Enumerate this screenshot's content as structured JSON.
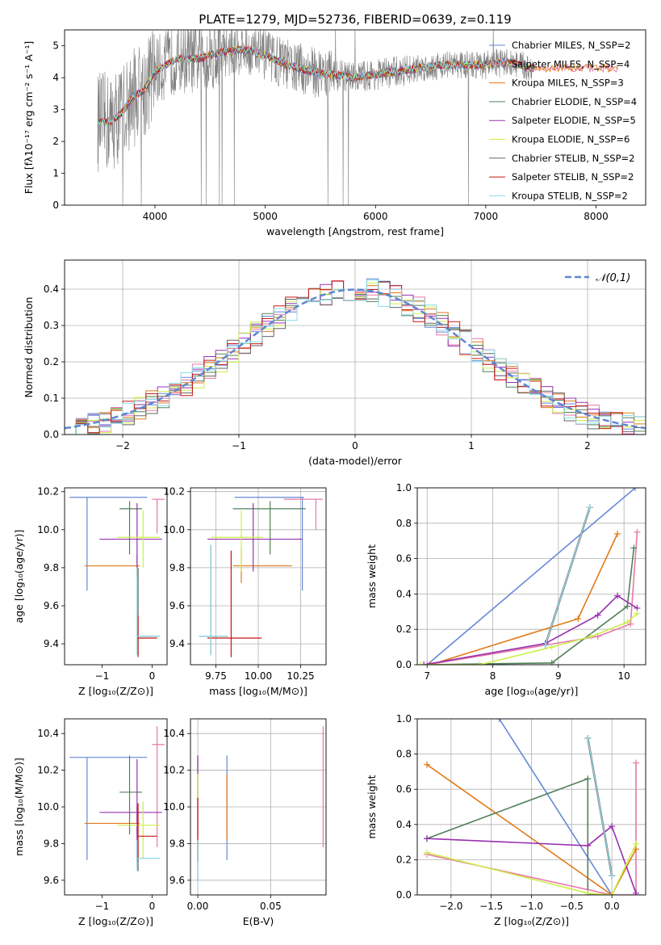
{
  "colors": {
    "Chabrier MILES": "#6688d8",
    "Salpeter MILES": "#e878a8",
    "Kroupa MILES": "#e07a18",
    "Chabrier ELODIE": "#508058",
    "Salpeter ELODIE": "#9830b0",
    "Kroupa ELODIE": "#ccee48",
    "Chabrier STELIB": "#666666",
    "Salpeter STELIB": "#c81818",
    "Kroupa STELIB": "#88dde8",
    "spectrum": "#808080",
    "gauss": "#5f87d0",
    "grid": "#b0b0b0"
  },
  "chart_data": [
    {
      "id": "spectrum",
      "type": "line",
      "title": "PLATE=1279, MJD=52736, FIBERID=0639, z=0.119",
      "xlabel": "wavelength [Angstrom, rest frame]",
      "ylabel": "Flux [fλ10⁻¹⁷ erg cm⁻² s⁻¹ A⁻¹]",
      "xlim": [
        3180,
        8450
      ],
      "ylim": [
        0,
        5.5
      ],
      "xticks": [
        4000,
        5000,
        6000,
        7000,
        8000
      ],
      "yticks": [
        0,
        1,
        2,
        3,
        4,
        5
      ],
      "grid": false,
      "legend": "top-right",
      "legend_entries": [
        "Chabrier MILES, N_SSP=2",
        "Salpeter MILES, N_SSP=4",
        "Kroupa MILES, N_SSP=3",
        "Chabrier ELODIE, N_SSP=4",
        "Salpeter ELODIE, N_SSP=5",
        "Kroupa ELODIE, N_SSP=6",
        "Chabrier STELIB, N_SSP=2",
        "Salpeter STELIB, N_SSP=2",
        "Kroupa STELIB, N_SSP=2"
      ],
      "continuum": [
        [
          3480,
          2.6
        ],
        [
          3600,
          2.6
        ],
        [
          3700,
          2.9
        ],
        [
          3800,
          3.4
        ],
        [
          3900,
          3.6
        ],
        [
          4000,
          4.2
        ],
        [
          4200,
          4.6
        ],
        [
          4400,
          4.6
        ],
        [
          4600,
          4.8
        ],
        [
          4800,
          4.9
        ],
        [
          5000,
          4.7
        ],
        [
          5200,
          4.4
        ],
        [
          5400,
          4.2
        ],
        [
          5600,
          4.1
        ],
        [
          5800,
          4.0
        ],
        [
          6000,
          4.1
        ],
        [
          6200,
          4.2
        ],
        [
          6400,
          4.3
        ],
        [
          6600,
          4.4
        ],
        [
          6800,
          4.4
        ],
        [
          7000,
          4.4
        ],
        [
          7200,
          4.5
        ],
        [
          7400,
          4.3
        ]
      ],
      "noise_range": [
        3480,
        7420
      ]
    },
    {
      "id": "hist",
      "type": "line",
      "xlabel": "(data-model)/error",
      "ylabel": "Normed distribution",
      "xlim": [
        -2.5,
        2.5
      ],
      "ylim": [
        0,
        0.48
      ],
      "xticks": [
        -2,
        -1,
        0,
        1,
        2
      ],
      "yticks": [
        0.0,
        0.1,
        0.2,
        0.3,
        0.4
      ],
      "grid": true,
      "legend": "top-right",
      "legend_entries": [
        "𝒩(0,1)"
      ]
    },
    {
      "id": "age_z",
      "type": "scatter",
      "xlabel": "Z [log₁₀(Z/Z⊙)]",
      "ylabel": "age  [log₁₀(age/yr)]",
      "xlim": [
        -1.75,
        0.3
      ],
      "ylim": [
        9.29,
        10.22
      ],
      "xticks": [
        -1,
        0
      ],
      "yticks": [
        9.4,
        9.6,
        9.8,
        10.0,
        10.2
      ],
      "grid": false,
      "points": [
        {
          "m": "Chabrier MILES",
          "x": -1.3,
          "y": 10.17,
          "xe": [
            -1.65,
            -0.1
          ],
          "ye": [
            9.68,
            10.17
          ]
        },
        {
          "m": "Salpeter MILES",
          "x": 0.1,
          "y": 10.16,
          "xe": [
            0.0,
            0.25
          ],
          "ye": [
            9.98,
            10.16
          ]
        },
        {
          "m": "Kroupa MILES",
          "x": -0.3,
          "y": 9.81,
          "xe": [
            -1.35,
            -0.25
          ],
          "ye": [
            9.75,
            9.87
          ]
        },
        {
          "m": "Chabrier ELODIE",
          "x": -0.45,
          "y": 10.11,
          "xe": [
            -0.65,
            -0.2
          ],
          "ye": [
            9.87,
            10.15
          ]
        },
        {
          "m": "Salpeter ELODIE",
          "x": -0.3,
          "y": 9.95,
          "xe": [
            -1.05,
            0.2
          ],
          "ye": [
            9.8,
            10.14
          ]
        },
        {
          "m": "Kroupa ELODIE",
          "x": -0.18,
          "y": 9.96,
          "xe": [
            -0.7,
            0.15
          ],
          "ye": [
            9.8,
            10.1
          ]
        },
        {
          "m": "Chabrier STELIB",
          "x": -0.28,
          "y": 9.44,
          "xe": [
            -0.3,
            0.15
          ],
          "ye": [
            9.34,
            9.8
          ]
        },
        {
          "m": "Salpeter STELIB",
          "x": -0.28,
          "y": 9.43,
          "xe": [
            -0.3,
            0.1
          ],
          "ye": [
            9.33,
            9.55
          ]
        },
        {
          "m": "Kroupa STELIB",
          "x": -0.3,
          "y": 9.44,
          "xe": [
            -0.3,
            0.15
          ],
          "ye": [
            9.34,
            9.8
          ]
        }
      ]
    },
    {
      "id": "age_mass",
      "type": "scatter",
      "xlabel": "mass [log₁₀(M/M⊙)]",
      "ylabel": "",
      "xlim": [
        9.6,
        10.4
      ],
      "ylim": [
        9.29,
        10.22
      ],
      "xticks": [
        9.75,
        10.0,
        10.25
      ],
      "xticklabels": [
        "9.75",
        "10.00",
        "10.25"
      ],
      "yticks": [
        9.4,
        9.6,
        9.8,
        10.0,
        10.2
      ],
      "grid": true,
      "points": [
        {
          "m": "Chabrier MILES",
          "x": 10.26,
          "y": 10.17,
          "xe": [
            9.86,
            10.27
          ],
          "ye": [
            9.68,
            10.17
          ]
        },
        {
          "m": "Salpeter MILES",
          "x": 10.34,
          "y": 10.16,
          "xe": [
            10.15,
            10.38
          ],
          "ye": [
            10.0,
            10.16
          ]
        },
        {
          "m": "Kroupa MILES",
          "x": 9.9,
          "y": 9.81,
          "xe": [
            9.85,
            10.2
          ],
          "ye": [
            9.72,
            9.9
          ]
        },
        {
          "m": "Chabrier ELODIE",
          "x": 10.07,
          "y": 10.11,
          "xe": [
            9.85,
            10.28
          ],
          "ye": [
            9.87,
            10.15
          ]
        },
        {
          "m": "Salpeter ELODIE",
          "x": 9.97,
          "y": 9.95,
          "xe": [
            9.7,
            10.26
          ],
          "ye": [
            9.78,
            10.14
          ]
        },
        {
          "m": "Kroupa ELODIE",
          "x": 9.9,
          "y": 9.96,
          "xe": [
            9.72,
            10.03
          ],
          "ye": [
            9.78,
            10.1
          ]
        },
        {
          "m": "Chabrier STELIB",
          "x": 9.72,
          "y": 9.44,
          "xe": [
            9.65,
            9.82
          ],
          "ye": [
            9.34,
            9.92
          ]
        },
        {
          "m": "Salpeter STELIB",
          "x": 9.84,
          "y": 9.43,
          "xe": [
            9.7,
            10.02
          ],
          "ye": [
            9.33,
            9.89
          ]
        },
        {
          "m": "Kroupa STELIB",
          "x": 9.72,
          "y": 9.44,
          "xe": [
            9.65,
            9.82
          ],
          "ye": [
            9.34,
            9.92
          ]
        }
      ]
    },
    {
      "id": "weight_age",
      "type": "line",
      "xlabel": "age  [log₁₀(age/yr)]",
      "ylabel": "mass weight",
      "xlim": [
        6.85,
        10.33
      ],
      "ylim": [
        0,
        1
      ],
      "xticks": [
        7,
        8,
        9,
        10
      ],
      "yticks": [
        0.0,
        0.2,
        0.4,
        0.6,
        0.8,
        1.0
      ],
      "grid": true,
      "series": [
        {
          "m": "Chabrier MILES",
          "x": [
            7.0,
            10.17
          ],
          "y": [
            0.0,
            1.0
          ]
        },
        {
          "m": "Salpeter MILES",
          "x": [
            7.0,
            9.6,
            10.1,
            10.2
          ],
          "y": [
            0.0,
            0.16,
            0.23,
            0.75
          ]
        },
        {
          "m": "Kroupa MILES",
          "x": [
            7.05,
            9.3,
            9.9
          ],
          "y": [
            0.0,
            0.26,
            0.74
          ]
        },
        {
          "m": "Chabrier ELODIE",
          "x": [
            6.95,
            8.9,
            10.05,
            10.15
          ],
          "y": [
            0.0,
            0.01,
            0.33,
            0.66
          ]
        },
        {
          "m": "Salpeter ELODIE",
          "x": [
            6.95,
            8.8,
            9.6,
            9.9,
            10.2
          ],
          "y": [
            0.0,
            0.12,
            0.28,
            0.39,
            0.32
          ]
        },
        {
          "m": "Kroupa ELODIE",
          "x": [
            6.9,
            7.8,
            8.9,
            9.5,
            10.05,
            10.2
          ],
          "y": [
            0.0,
            0.0,
            0.1,
            0.16,
            0.24,
            0.29
          ]
        },
        {
          "m": "Chabrier STELIB",
          "x": [
            8.8,
            9.48
          ],
          "y": [
            0.11,
            0.89
          ]
        },
        {
          "m": "Salpeter STELIB",
          "x": [
            8.8,
            9.48
          ],
          "y": [
            0.11,
            0.89
          ]
        },
        {
          "m": "Kroupa STELIB",
          "x": [
            8.8,
            9.48
          ],
          "y": [
            0.11,
            0.89
          ]
        }
      ]
    },
    {
      "id": "mass_z",
      "type": "scatter",
      "xlabel": "Z [log₁₀(Z/Z⊙)]",
      "ylabel": "mass [log₁₀(M/M⊙)]",
      "xlim": [
        -1.75,
        0.3
      ],
      "ylim": [
        9.52,
        10.48
      ],
      "xticks": [
        -1,
        0
      ],
      "yticks": [
        9.6,
        9.8,
        10.0,
        10.2,
        10.4
      ],
      "grid": false,
      "points": [
        {
          "m": "Chabrier MILES",
          "x": -1.3,
          "y": 10.27,
          "xe": [
            -1.65,
            -0.1
          ],
          "ye": [
            9.71,
            10.27
          ]
        },
        {
          "m": "Salpeter MILES",
          "x": 0.1,
          "y": 10.34,
          "xe": [
            0.0,
            0.25
          ],
          "ye": [
            9.78,
            10.44
          ]
        },
        {
          "m": "Kroupa MILES",
          "x": -0.3,
          "y": 9.91,
          "xe": [
            -1.35,
            -0.25
          ],
          "ye": [
            9.85,
            10.0
          ]
        },
        {
          "m": "Chabrier ELODIE",
          "x": -0.45,
          "y": 10.08,
          "xe": [
            -0.65,
            -0.2
          ],
          "ye": [
            9.85,
            10.28
          ]
        },
        {
          "m": "Salpeter ELODIE",
          "x": -0.3,
          "y": 9.97,
          "xe": [
            -1.05,
            0.2
          ],
          "ye": [
            9.7,
            10.26
          ]
        },
        {
          "m": "Kroupa ELODIE",
          "x": -0.18,
          "y": 9.9,
          "xe": [
            -0.7,
            0.15
          ],
          "ye": [
            9.72,
            10.03
          ]
        },
        {
          "m": "Chabrier STELIB",
          "x": -0.28,
          "y": 9.72,
          "xe": [
            -0.3,
            0.15
          ],
          "ye": [
            9.65,
            9.82
          ]
        },
        {
          "m": "Salpeter STELIB",
          "x": -0.28,
          "y": 9.84,
          "xe": [
            -0.3,
            0.1
          ],
          "ye": [
            9.72,
            10.02
          ]
        },
        {
          "m": "Kroupa STELIB",
          "x": -0.3,
          "y": 9.72,
          "xe": [
            -0.3,
            0.15
          ],
          "ye": [
            9.65,
            9.82
          ]
        }
      ]
    },
    {
      "id": "mass_ebv",
      "type": "scatter",
      "xlabel": "E(B-V)",
      "ylabel": "",
      "xlim": [
        -0.005,
        0.088
      ],
      "ylim": [
        9.52,
        10.48
      ],
      "xticks": [
        0.0,
        0.05
      ],
      "xticklabels": [
        "0.00",
        "0.05"
      ],
      "yticks": [
        9.6,
        9.8,
        10.0,
        10.2,
        10.4
      ],
      "grid": true,
      "points": [
        {
          "m": "Chabrier MILES",
          "x": 0.02,
          "y": 10.27,
          "xe": [
            0.02,
            0.02
          ],
          "ye": [
            9.71,
            10.28
          ]
        },
        {
          "m": "Salpeter MILES",
          "x": 0.086,
          "y": 10.34,
          "xe": [
            0.086,
            0.086
          ],
          "ye": [
            9.78,
            10.44
          ]
        },
        {
          "m": "Kroupa MILES",
          "x": 0.02,
          "y": 9.91,
          "xe": [
            0.02,
            0.02
          ],
          "ye": [
            9.82,
            10.18
          ]
        },
        {
          "m": "Chabrier ELODIE",
          "x": 0.0,
          "y": 10.08,
          "xe": [
            0.0,
            0.0
          ],
          "ye": [
            9.85,
            10.28
          ]
        },
        {
          "m": "Salpeter ELODIE",
          "x": 0.0,
          "y": 9.97,
          "xe": [
            0.0,
            0.0
          ],
          "ye": [
            9.7,
            10.28
          ]
        },
        {
          "m": "Kroupa ELODIE",
          "x": 0.0,
          "y": 9.9,
          "xe": [
            0.0,
            0.0
          ],
          "ye": [
            9.72,
            10.18
          ]
        },
        {
          "m": "Chabrier STELIB",
          "x": 0.0,
          "y": 9.72,
          "xe": [
            0.0,
            0.0
          ],
          "ye": [
            9.6,
            9.82
          ]
        },
        {
          "m": "Salpeter STELIB",
          "x": 0.0,
          "y": 9.84,
          "xe": [
            0.0,
            0.0
          ],
          "ye": [
            9.7,
            10.05
          ]
        },
        {
          "m": "Kroupa STELIB",
          "x": 0.0,
          "y": 9.72,
          "xe": [
            0.0,
            0.0
          ],
          "ye": [
            9.55,
            9.82
          ]
        }
      ]
    },
    {
      "id": "weight_z",
      "type": "line",
      "xlabel": "Z [log₁₀(Z/Z⊙)]",
      "ylabel": "mass weight",
      "xlim": [
        -2.42,
        0.42
      ],
      "ylim": [
        0,
        1
      ],
      "xticks": [
        -2.0,
        -1.5,
        -1.0,
        -0.5,
        0.0
      ],
      "yticks": [
        0.0,
        0.2,
        0.4,
        0.6,
        0.8,
        1.0
      ],
      "grid": true,
      "series": [
        {
          "m": "Chabrier MILES",
          "x": [
            -1.4,
            0.0
          ],
          "y": [
            1.0,
            0.0
          ]
        },
        {
          "m": "Salpeter MILES",
          "x": [
            -2.3,
            0.0,
            0.3,
            0.3
          ],
          "y": [
            0.23,
            0.0,
            0.0,
            0.75
          ]
        },
        {
          "m": "Kroupa MILES",
          "x": [
            -2.3,
            0.0,
            0.3
          ],
          "y": [
            0.74,
            0.0,
            0.26
          ]
        },
        {
          "m": "Chabrier ELODIE",
          "x": [
            -2.3,
            -0.3,
            -0.3,
            0.0
          ],
          "y": [
            0.32,
            0.66,
            0.0,
            0.0
          ]
        },
        {
          "m": "Salpeter ELODIE",
          "x": [
            -2.3,
            -0.3,
            0.0,
            0.3
          ],
          "y": [
            0.32,
            0.28,
            0.39,
            0.01
          ]
        },
        {
          "m": "Kroupa ELODIE",
          "x": [
            -2.3,
            -0.3,
            0.0,
            0.3
          ],
          "y": [
            0.24,
            0.01,
            0.0,
            0.29
          ]
        },
        {
          "m": "Chabrier STELIB",
          "x": [
            -0.3,
            0.0
          ],
          "y": [
            0.89,
            0.11
          ]
        },
        {
          "m": "Salpeter STELIB",
          "x": [
            -0.3,
            0.0
          ],
          "y": [
            0.89,
            0.11
          ]
        },
        {
          "m": "Kroupa STELIB",
          "x": [
            -0.3,
            0.0
          ],
          "y": [
            0.89,
            0.11
          ]
        }
      ]
    }
  ]
}
